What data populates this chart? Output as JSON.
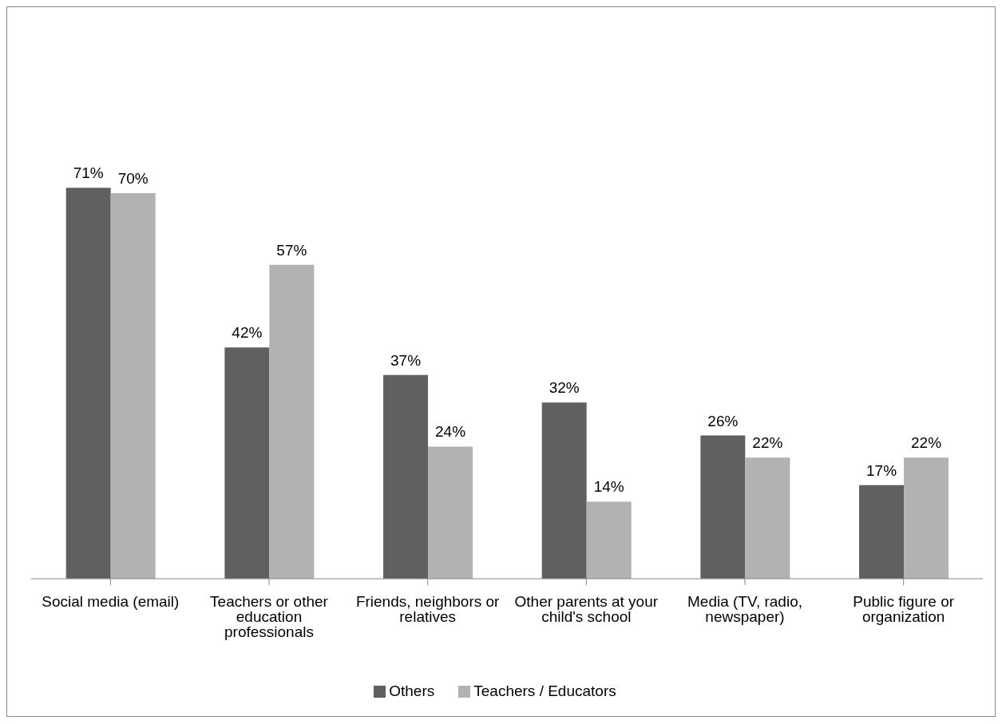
{
  "chart_data": {
    "type": "bar",
    "categories": [
      "Social media (email)",
      "Teachers or other education professionals",
      "Friends, neighbors or relatives",
      "Other parents at your child's school",
      "Media (TV, radio, newspaper)",
      "Public figure or organization"
    ],
    "series": [
      {
        "name": "Others",
        "color": "#606060",
        "values": [
          71,
          42,
          37,
          32,
          26,
          17
        ],
        "value_labels": [
          "71%",
          "42%",
          "37%",
          "32%",
          "26%",
          "17%"
        ]
      },
      {
        "name": "Teachers / Educators",
        "color": "#b2b2b2",
        "values": [
          70,
          57,
          24,
          14,
          22,
          22
        ],
        "value_labels": [
          "70%",
          "57%",
          "24%",
          "14%",
          "22%",
          "22%"
        ]
      }
    ],
    "grid": false,
    "legend": "bottom"
  }
}
